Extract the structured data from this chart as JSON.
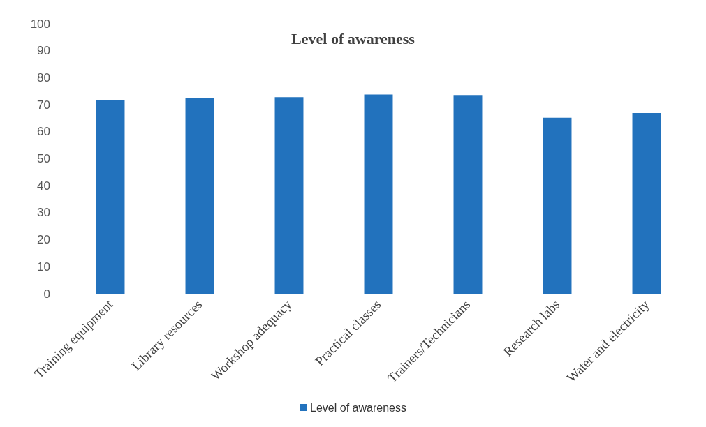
{
  "chart_data": {
    "type": "bar",
    "title": "Level of awareness",
    "categories": [
      "Training equipment",
      "Library resources",
      "Workshop adequacy",
      "Practical classes",
      "Trainers/Technicians",
      "Research labs",
      "Water and electricity"
    ],
    "series": [
      {
        "name": "Level of awareness",
        "color": "#2272bd",
        "values": [
          71.6,
          72.6,
          72.8,
          73.8,
          73.6,
          65.2,
          66.9
        ]
      }
    ],
    "ylim": [
      0,
      100
    ],
    "yticks": [
      0,
      10,
      20,
      30,
      40,
      50,
      60,
      70,
      80,
      90,
      100
    ],
    "grid": false,
    "legend": "bottom"
  }
}
